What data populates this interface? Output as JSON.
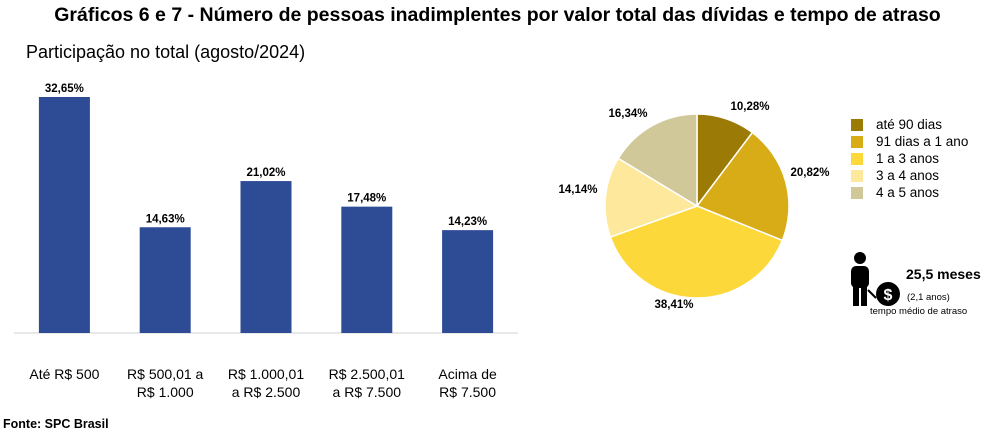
{
  "title": "Gráficos 6 e 7 - Número de pessoas inadimplentes por valor total das dívidas e tempo de atraso",
  "subtitle": "Participação no total (agosto/2024)",
  "source": "Fonte: SPC Brasil",
  "colors": {
    "bar": "#2e4b96",
    "axis": "#d0d0d0",
    "pie": [
      "#9b7b05",
      "#d8ac17",
      "#fdd83a",
      "#fde89c",
      "#d1c89a"
    ]
  },
  "chart_data": [
    {
      "type": "bar",
      "categories": [
        [
          "Até R$ 500"
        ],
        [
          "R$ 500,01 a",
          "R$ 1.000"
        ],
        [
          "R$ 1.000,01",
          "a R$ 2.500"
        ],
        [
          "R$ 2.500,01",
          "a R$ 7.500"
        ],
        [
          "Acima de",
          "R$ 7.500"
        ]
      ],
      "values": [
        32.65,
        14.63,
        21.02,
        17.48,
        14.23
      ],
      "labels": [
        "32,65%",
        "14,63%",
        "21,02%",
        "17,48%",
        "14,23%"
      ],
      "ylim": [
        0,
        33
      ]
    },
    {
      "type": "pie",
      "categories": [
        "até 90 dias",
        "91 dias a 1 ano",
        "1 a 3 anos",
        "3 a 4 anos",
        "4 a 5 anos"
      ],
      "values": [
        10.28,
        20.82,
        38.41,
        14.14,
        16.34
      ],
      "labels": [
        "10,28%",
        "20,82%",
        "38,41%",
        "14,14%",
        "16,34%"
      ],
      "legend_position": "right"
    }
  ],
  "average": {
    "value": "25,5 meses",
    "sub": "(2,1 anos)",
    "caption": "tempo médio de atraso",
    "icon": "person-with-money-bag-icon"
  }
}
